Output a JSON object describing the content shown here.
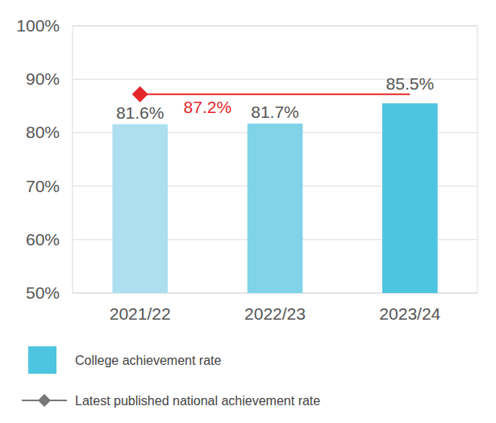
{
  "chart_data": {
    "type": "bar",
    "categories": [
      "2021/22",
      "2022/23",
      "2023/24"
    ],
    "series": [
      {
        "name": "College achievement rate",
        "type": "bar",
        "colors": [
          "#addff0",
          "#80d3e8",
          "#4dc5e0"
        ],
        "values": [
          81.6,
          81.7,
          85.5
        ],
        "value_labels": [
          "81.6%",
          "81.7%",
          "85.5%"
        ]
      },
      {
        "name": "Latest published national achievement rate",
        "type": "line",
        "color": "#e5262b",
        "marker": "diamond",
        "line_style": "solid",
        "values": [
          87.2,
          87.2,
          87.2
        ],
        "value_labels": [
          "87.2%",
          null,
          null
        ]
      }
    ],
    "ylim": [
      50,
      100
    ],
    "yticks": [
      {
        "value": 50,
        "label": "50%"
      },
      {
        "value": 60,
        "label": "60%"
      },
      {
        "value": 70,
        "label": "70%"
      },
      {
        "value": 80,
        "label": "80%"
      },
      {
        "value": 90,
        "label": "90%"
      },
      {
        "value": 100,
        "label": "100%"
      }
    ],
    "grid": true,
    "data_labels": true,
    "legend": "bottom"
  }
}
